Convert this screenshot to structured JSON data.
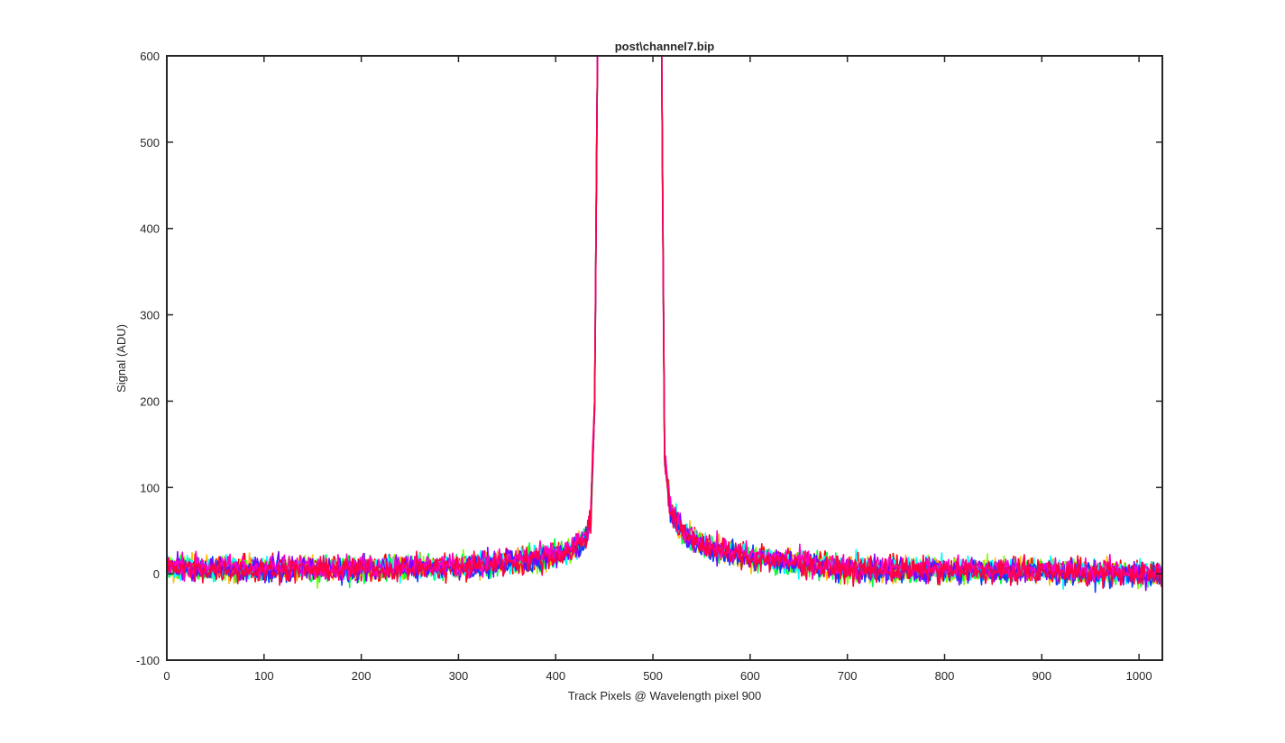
{
  "figure": {
    "background": "#ffffff",
    "axes_color": "#262626"
  },
  "chart_data": {
    "type": "line",
    "title": "post\\channel7.bip",
    "xlabel": "Track Pixels @ Wavelength pixel 900",
    "ylabel": "Signal (ADU)",
    "xlim": [
      0,
      1024
    ],
    "ylim": [
      -100,
      600
    ],
    "xticks": [
      0,
      100,
      200,
      300,
      400,
      500,
      600,
      700,
      800,
      900,
      1000
    ],
    "yticks": [
      -100,
      0,
      100,
      200,
      300,
      400,
      500,
      600
    ],
    "grid": false,
    "box": true,
    "series_colors": [
      "#ff0000",
      "#ffbf00",
      "#80ff00",
      "#00ff40",
      "#00ffff",
      "#0040ff",
      "#7f00ff",
      "#ff00bf",
      "#ff0040"
    ],
    "profile_x": [
      0,
      100,
      200,
      300,
      350,
      400,
      420,
      430,
      436,
      440,
      443,
      470,
      500,
      509,
      512,
      518,
      530,
      560,
      600,
      700,
      800,
      900,
      1024
    ],
    "profile_y": [
      8,
      6,
      7,
      9,
      14,
      22,
      30,
      42,
      62,
      200,
      600,
      600,
      600,
      600,
      140,
      72,
      48,
      30,
      20,
      6,
      5,
      4,
      0
    ],
    "noise_amplitude_adu": 12,
    "series_count": 9
  }
}
